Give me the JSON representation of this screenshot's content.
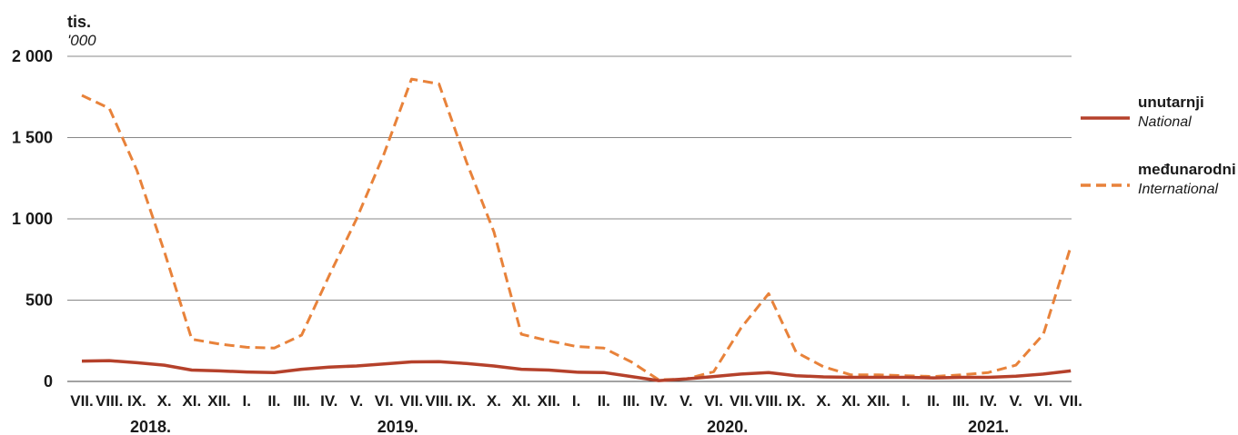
{
  "chart_data": {
    "type": "line",
    "unit_label": "tis.",
    "unit_label_en": "'000",
    "yticks": [
      "2 000",
      "1 500",
      "1 000",
      "500",
      "0"
    ],
    "ytick_values": [
      2000,
      1500,
      1000,
      500,
      0
    ],
    "ylim": [
      0,
      2000
    ],
    "grid": true,
    "categories": [
      "VII.",
      "VIII.",
      "IX.",
      "X.",
      "XI.",
      "XII.",
      "I.",
      "II.",
      "III.",
      "IV.",
      "V.",
      "VI.",
      "VII.",
      "VIII.",
      "IX.",
      "X.",
      "XI.",
      "XII.",
      "I.",
      "II.",
      "III.",
      "IV.",
      "V.",
      "VI.",
      "VII.",
      "VIII.",
      "IX.",
      "X.",
      "XI.",
      "XII.",
      "I.",
      "II.",
      "III.",
      "IV.",
      "V.",
      "VI.",
      "VII."
    ],
    "years": [
      {
        "label": "2018.",
        "from": 0,
        "to": 5
      },
      {
        "label": "2019.",
        "from": 6,
        "to": 17
      },
      {
        "label": "2020.",
        "from": 18,
        "to": 29
      },
      {
        "label": "2021.",
        "from": 30,
        "to": 36
      }
    ],
    "series": [
      {
        "name": "unutarnji",
        "name_en": "National",
        "color": "#b5412b",
        "style": "solid",
        "values": [
          125,
          128,
          115,
          100,
          70,
          65,
          58,
          55,
          75,
          88,
          95,
          108,
          120,
          122,
          110,
          95,
          75,
          70,
          57,
          55,
          30,
          5,
          15,
          30,
          45,
          55,
          35,
          28,
          25,
          25,
          25,
          22,
          25,
          25,
          32,
          45,
          65
        ]
      },
      {
        "name": "međunarodni",
        "name_en": "International",
        "color": "#e8823a",
        "style": "dashed",
        "values": [
          1760,
          1680,
          1300,
          800,
          260,
          230,
          210,
          205,
          285,
          650,
          1000,
          1400,
          1860,
          1830,
          1350,
          920,
          290,
          250,
          215,
          205,
          120,
          10,
          15,
          60,
          330,
          540,
          180,
          90,
          40,
          40,
          35,
          30,
          40,
          55,
          100,
          290,
          830
        ]
      }
    ],
    "legend_position": "right"
  }
}
